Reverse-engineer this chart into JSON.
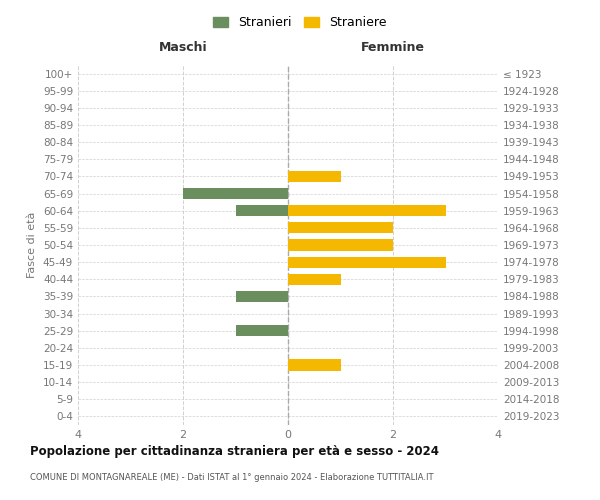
{
  "age_groups": [
    "100+",
    "95-99",
    "90-94",
    "85-89",
    "80-84",
    "75-79",
    "70-74",
    "65-69",
    "60-64",
    "55-59",
    "50-54",
    "45-49",
    "40-44",
    "35-39",
    "30-34",
    "25-29",
    "20-24",
    "15-19",
    "10-14",
    "5-9",
    "0-4"
  ],
  "birth_years": [
    "≤ 1923",
    "1924-1928",
    "1929-1933",
    "1934-1938",
    "1939-1943",
    "1944-1948",
    "1949-1953",
    "1954-1958",
    "1959-1963",
    "1964-1968",
    "1969-1973",
    "1974-1978",
    "1979-1983",
    "1984-1988",
    "1989-1993",
    "1994-1998",
    "1999-2003",
    "2004-2008",
    "2009-2013",
    "2014-2018",
    "2019-2023"
  ],
  "maschi": [
    0,
    0,
    0,
    0,
    0,
    0,
    0,
    2,
    1,
    0,
    0,
    0,
    0,
    1,
    0,
    1,
    0,
    0,
    0,
    0,
    0
  ],
  "femmine": [
    0,
    0,
    0,
    0,
    0,
    0,
    1,
    0,
    3,
    2,
    2,
    3,
    1,
    0,
    0,
    0,
    0,
    1,
    0,
    0,
    0
  ],
  "color_maschi": "#6b8e5e",
  "color_femmine": "#f5b800",
  "xlim": 4,
  "title": "Popolazione per cittadinanza straniera per età e sesso - 2024",
  "subtitle": "COMUNE DI MONTAGNAREALE (ME) - Dati ISTAT al 1° gennaio 2024 - Elaborazione TUTTITALIA.IT",
  "ylabel_left": "Fasce di età",
  "label_maschi": "Stranieri",
  "label_femmine": "Straniere",
  "header_left": "Maschi",
  "header_right": "Femmine",
  "bg_color": "#ffffff",
  "grid_color": "#d0d0d0",
  "tick_color": "#777777"
}
